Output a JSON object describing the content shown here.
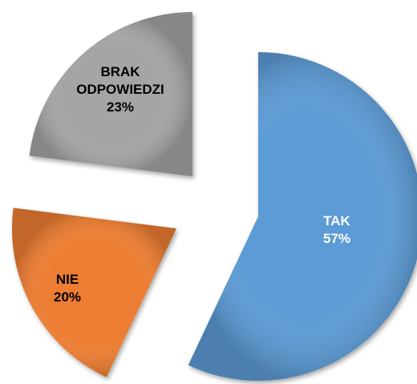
{
  "chart_data": {
    "type": "pie",
    "categories": [
      "TAK",
      "NIE",
      "BRAK ODPOWIEDZI"
    ],
    "values": [
      57,
      20,
      23
    ],
    "value_labels": [
      "57%",
      "20%",
      "23%"
    ],
    "colors": [
      "#5b9bd5",
      "#ed7d31",
      "#a5a5a5"
    ]
  }
}
